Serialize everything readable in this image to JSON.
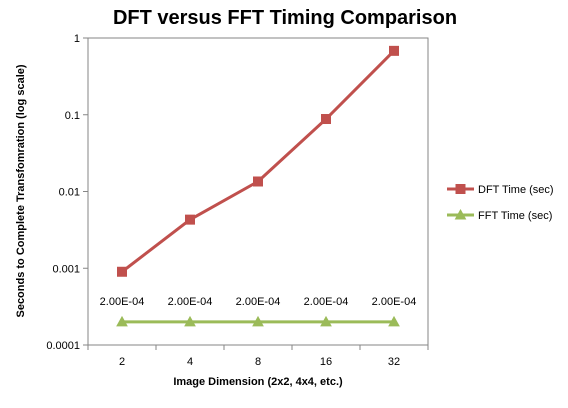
{
  "chart_data": {
    "type": "line",
    "title": "DFT versus FFT Timing Comparison",
    "xlabel": "Image Dimension (2x2, 4x4, etc.)",
    "ylabel": "Seconds to Complete Transfomration  (log scale)",
    "categories": [
      "2",
      "4",
      "8",
      "16",
      "32"
    ],
    "y_scale": "log",
    "ylim": [
      0.0001,
      1
    ],
    "y_ticks": [
      {
        "value": 1,
        "label": "1"
      },
      {
        "value": 0.1,
        "label": "0.1"
      },
      {
        "value": 0.01,
        "label": "0.01"
      },
      {
        "value": 0.001,
        "label": "0.001"
      },
      {
        "value": 0.0001,
        "label": "0.0001"
      }
    ],
    "grid": {
      "horizontal": false,
      "vertical": false
    },
    "legend_position": "right",
    "series": [
      {
        "name": "DFT Time (sec)",
        "color": "#C0504D",
        "marker": "square",
        "values": [
          0.0009,
          0.0043,
          0.0135,
          0.088,
          0.68
        ]
      },
      {
        "name": "FFT Time (sec)",
        "color": "#9BBB59",
        "marker": "triangle",
        "values": [
          0.0002,
          0.0002,
          0.0002,
          0.0002,
          0.0002
        ],
        "data_labels": [
          "2.00E-04",
          "2.00E-04",
          "2.00E-04",
          "2.00E-04",
          "2.00E-04"
        ]
      }
    ]
  }
}
